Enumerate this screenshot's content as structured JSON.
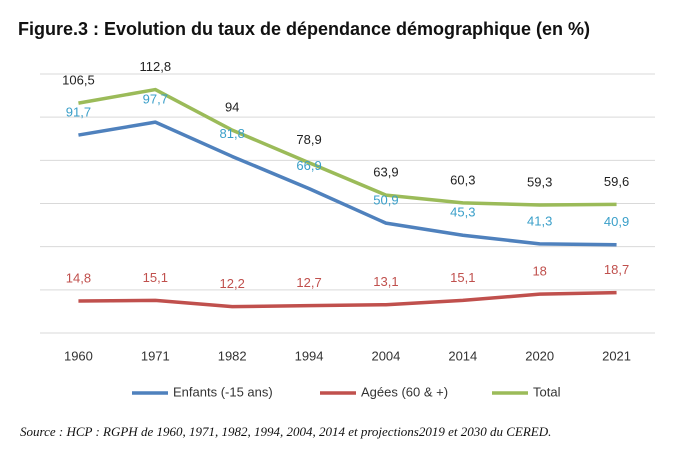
{
  "chart_data": {
    "type": "line",
    "title": "Figure.3 : Evolution du taux de dépendance démographique (en %)",
    "source": "Source : HCP : RGPH de 1960, 1971, 1982, 1994, 2004, 2014 et projections2019 et 2030 du CERED.",
    "categories": [
      "1960",
      "1971",
      "1982",
      "1994",
      "2004",
      "2014",
      "2020",
      "2021"
    ],
    "series": [
      {
        "name": "Enfants (-15 ans)",
        "color": "#4f81bd",
        "label_color": "#3a9fc9",
        "values": [
          91.7,
          97.7,
          81.8,
          66.9,
          50.9,
          45.3,
          41.3,
          40.9
        ],
        "value_labels": [
          "91,7",
          "97,7",
          "81,8",
          "66,9",
          "50,9",
          "45,3",
          "41,3",
          "40,9"
        ]
      },
      {
        "name": "Agées (60 & +)",
        "color": "#c0504d",
        "label_color": "#c0504d",
        "values": [
          14.8,
          15.1,
          12.2,
          12.7,
          13.1,
          15.1,
          18,
          18.7
        ],
        "value_labels": [
          "14,8",
          "15,1",
          "12,2",
          "12,7",
          "13,1",
          "15,1",
          "18",
          "18,7"
        ]
      },
      {
        "name": "Total",
        "color": "#9bbb59",
        "label_color": "#222222",
        "values": [
          106.5,
          112.8,
          94,
          78.9,
          63.9,
          60.3,
          59.3,
          59.6
        ],
        "value_labels": [
          "106,5",
          "112,8",
          "94",
          "78,9",
          "63,9",
          "60,3",
          "59,3",
          "59,6"
        ]
      }
    ],
    "ylim": [
      0,
      120
    ],
    "yticks": [
      0,
      20,
      40,
      60,
      80,
      100,
      120
    ],
    "grid": true,
    "legend": "bottom"
  }
}
